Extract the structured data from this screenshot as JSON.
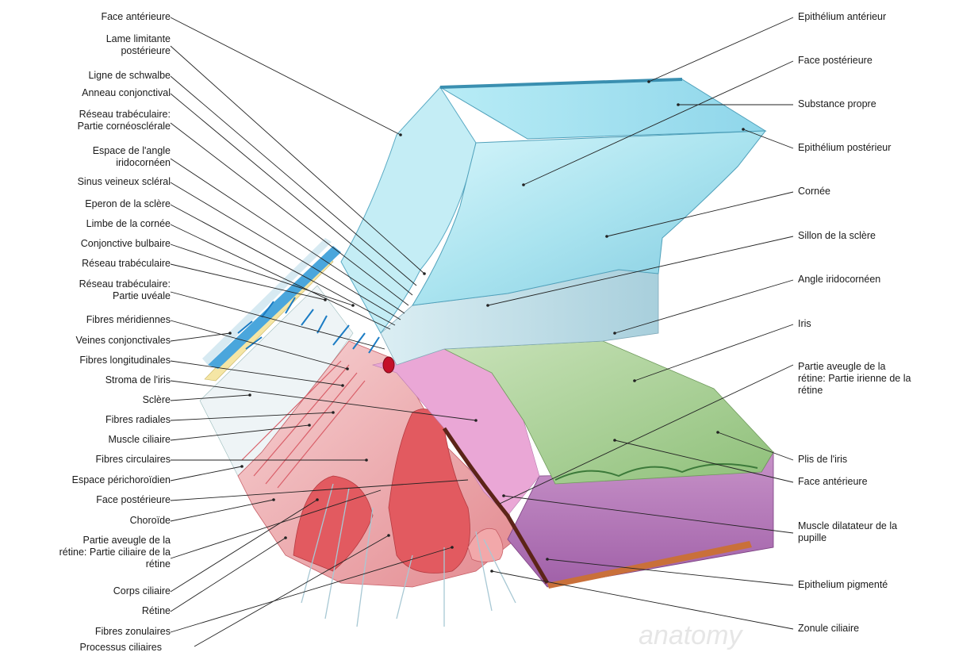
{
  "left_labels": [
    {
      "line1": "Face antérieure",
      "line2": ""
    },
    {
      "line1": "Lame limitante",
      "line2": "postérieure"
    },
    {
      "line1": "Ligne de schwalbe",
      "line2": ""
    },
    {
      "line1": "Anneau conjonctival",
      "line2": ""
    },
    {
      "line1": "Réseau trabéculaire:",
      "line2": "Partie cornéosclérale"
    },
    {
      "line1": "Espace de l'angle",
      "line2": "iridocornéen"
    },
    {
      "line1": "Sinus veineux scléral",
      "line2": ""
    },
    {
      "line1": "Eperon de la sclère",
      "line2": ""
    },
    {
      "line1": "Limbe de la cornée",
      "line2": ""
    },
    {
      "line1": "Conjonctive bulbaire",
      "line2": ""
    },
    {
      "line1": "Réseau trabéculaire",
      "line2": ""
    },
    {
      "line1": "Réseau trabéculaire:",
      "line2": "Partie uvéale"
    },
    {
      "line1": "Fibres méridiennes",
      "line2": ""
    },
    {
      "line1": "Veines conjonctivales",
      "line2": ""
    },
    {
      "line1": "Fibres longitudinales",
      "line2": ""
    },
    {
      "line1": "Stroma de l'iris",
      "line2": ""
    },
    {
      "line1": "Sclère",
      "line2": ""
    },
    {
      "line1": "Fibres radiales",
      "line2": ""
    },
    {
      "line1": "Muscle ciliaire",
      "line2": ""
    },
    {
      "line1": "Fibres circulaires",
      "line2": ""
    },
    {
      "line1": "Espace périchoroïdien",
      "line2": ""
    },
    {
      "line1": "Face postérieure",
      "line2": ""
    },
    {
      "line1": "Choroïde",
      "line2": ""
    },
    {
      "line1": "Partie aveugle de la",
      "line2": "rétine: Partie ciliaire de la",
      "line3": "rétine"
    },
    {
      "line1": "Corps ciliaire",
      "line2": ""
    },
    {
      "line1": "Rétine",
      "line2": ""
    },
    {
      "line1": "Fibres zonulaires",
      "line2": ""
    },
    {
      "line1": "Processus ciliaires",
      "line2": ""
    }
  ],
  "right_labels": [
    {
      "line1": "Epithélium antérieur",
      "line2": ""
    },
    {
      "line1": "Face postérieure",
      "line2": ""
    },
    {
      "line1": "Substance propre",
      "line2": ""
    },
    {
      "line1": "Epithélium postérieur",
      "line2": ""
    },
    {
      "line1": "Cornée",
      "line2": ""
    },
    {
      "line1": "Sillon de la sclère",
      "line2": ""
    },
    {
      "line1": "Angle iridocornéen",
      "line2": ""
    },
    {
      "line1": "Iris",
      "line2": ""
    },
    {
      "line1": "Partie aveugle de la",
      "line2": "rétine: Partie irienne de la",
      "line3": "rétine"
    },
    {
      "line1": "Plis de l'iris",
      "line2": ""
    },
    {
      "line1": "Face antérieure",
      "line2": ""
    },
    {
      "line1": "Muscle dilatateur de la",
      "line2": "pupille"
    },
    {
      "line1": "Epithelium pigmenté",
      "line2": ""
    },
    {
      "line1": "Zonule ciliaire",
      "line2": ""
    }
  ],
  "watermark": "anatomy",
  "colors": {
    "cornea": "#a9e3ef",
    "cornea_side": "#7fc8e0",
    "sclera_band": "#c4dde6",
    "iris_green": "#a9cf94",
    "iris_purple": "#b77ab8",
    "ciliary_red": "#e07a80",
    "ciliary_pink": "#f4c2c4",
    "conjunctiva_yellow": "#f5e6a5",
    "veins_blue": "#2b8fd0",
    "pigment": "#6b2a1c"
  }
}
